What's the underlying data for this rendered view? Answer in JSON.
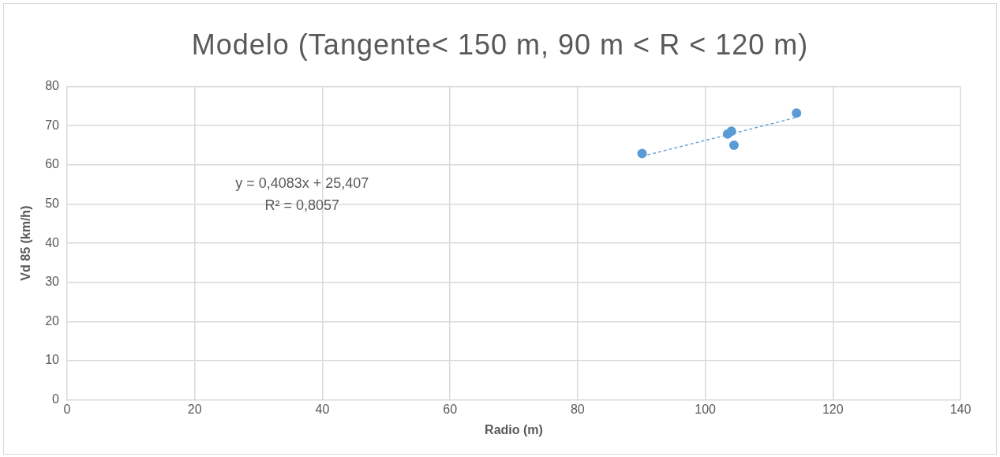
{
  "chart_data": {
    "type": "scatter",
    "title": "Modelo (Tangente< 150 m, 90 m < R < 120 m)",
    "xlabel": "Radio (m)",
    "ylabel": "Vd 85 (km/h)",
    "series": [
      {
        "color": "#5b9bd5",
        "marker": "circle",
        "x": [
          90.1,
          103.5,
          104.1,
          104.5,
          114.3
        ],
        "values": [
          62.9,
          67.9,
          68.6,
          65.0,
          73.2
        ]
      },
      {
        "type": "line",
        "color": "#5b9bd5",
        "marker": "none",
        "line_style": "dashed",
        "x": [
          90.1,
          114.3
        ],
        "values": [
          62.2,
          72.1
        ]
      }
    ],
    "xlim": [
      0,
      140
    ],
    "xticks": [
      0,
      20,
      40,
      60,
      80,
      100,
      120,
      140
    ],
    "ylim": [
      0,
      80
    ],
    "yticks": [
      0,
      10,
      20,
      30,
      40,
      50,
      60,
      70,
      80
    ],
    "grid": true,
    "annotations": [
      "y = 0,4083x + 25,407",
      "R² = 0,8057"
    ]
  }
}
